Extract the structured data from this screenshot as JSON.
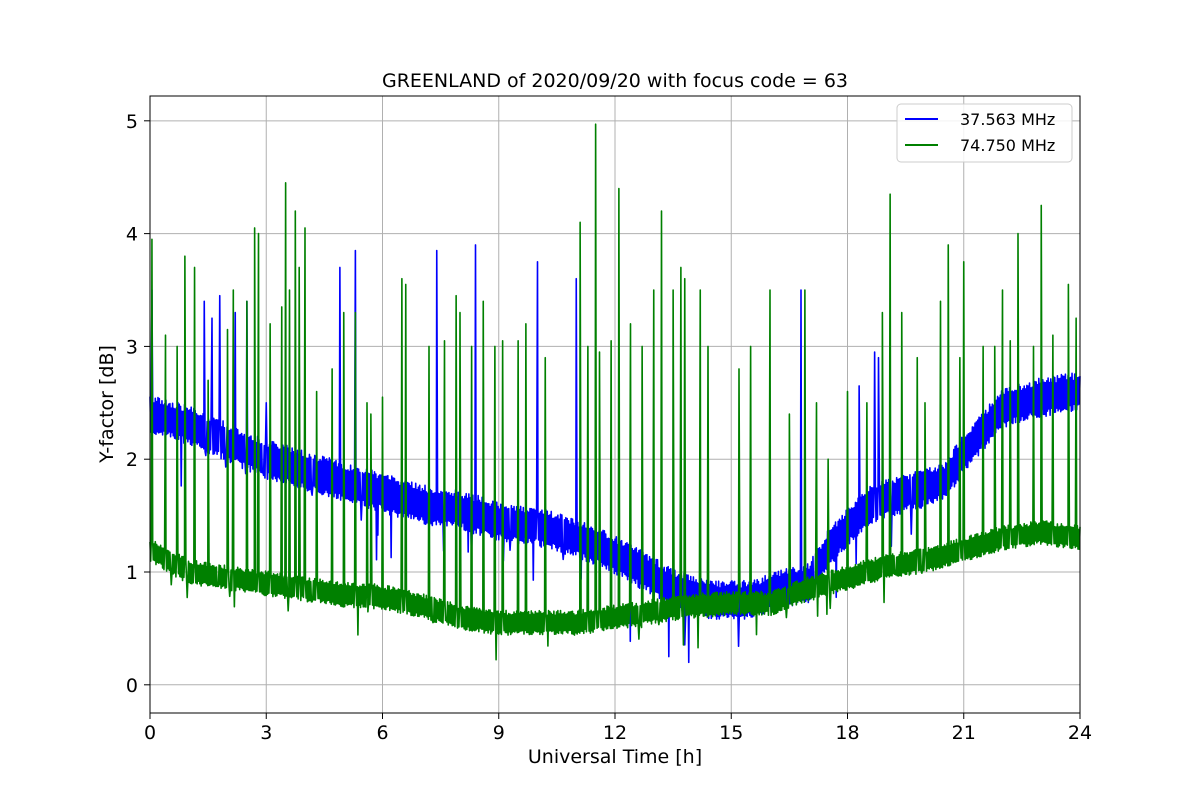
{
  "chart_data": {
    "type": "line",
    "title": "GREENLAND of 2020/09/20 with focus code = 63",
    "xlabel": "Universal Time [h]",
    "ylabel": "Y-factor [dB]",
    "xlim": [
      0,
      24
    ],
    "ylim": [
      -0.25,
      5.22
    ],
    "xticks": [
      0,
      3,
      6,
      9,
      12,
      15,
      18,
      21,
      24
    ],
    "yticks": [
      0,
      1,
      2,
      3,
      4,
      5
    ],
    "grid": true,
    "legend_position": "top-right",
    "series": [
      {
        "name": "37.563 MHz",
        "color": "#0000ff",
        "baseline": [
          [
            0,
            2.4
          ],
          [
            1,
            2.3
          ],
          [
            2,
            2.15
          ],
          [
            3,
            2.0
          ],
          [
            4,
            1.9
          ],
          [
            5,
            1.8
          ],
          [
            6,
            1.7
          ],
          [
            7,
            1.6
          ],
          [
            8,
            1.55
          ],
          [
            9,
            1.45
          ],
          [
            10,
            1.4
          ],
          [
            11,
            1.3
          ],
          [
            12,
            1.15
          ],
          [
            12.8,
            1.0
          ],
          [
            13.5,
            0.85
          ],
          [
            14.5,
            0.75
          ],
          [
            15.5,
            0.75
          ],
          [
            16.3,
            0.85
          ],
          [
            17.0,
            0.9
          ],
          [
            17.5,
            1.2
          ],
          [
            18,
            1.4
          ],
          [
            18.6,
            1.6
          ],
          [
            19.5,
            1.7
          ],
          [
            20.5,
            1.8
          ],
          [
            21,
            2.05
          ],
          [
            22,
            2.45
          ],
          [
            23,
            2.55
          ],
          [
            24,
            2.6
          ]
        ],
        "band_width": 0.35,
        "spikes": [
          [
            0.05,
            3.5
          ],
          [
            1.4,
            3.4
          ],
          [
            1.6,
            3.25
          ],
          [
            1.8,
            3.45
          ],
          [
            2.2,
            3.3
          ],
          [
            2.5,
            3.4
          ],
          [
            3.0,
            2.5
          ],
          [
            4.9,
            3.7
          ],
          [
            5.3,
            3.85
          ],
          [
            7.4,
            3.85
          ],
          [
            8.4,
            3.9
          ],
          [
            10.0,
            3.75
          ],
          [
            11.0,
            3.6
          ],
          [
            16.8,
            3.5
          ],
          [
            18.3,
            2.65
          ],
          [
            18.7,
            2.95
          ],
          [
            18.8,
            2.9
          ]
        ]
      },
      {
        "name": "74.750 MHz",
        "color": "#008000",
        "baseline": [
          [
            0,
            1.2
          ],
          [
            1,
            1.0
          ],
          [
            2,
            0.95
          ],
          [
            3,
            0.9
          ],
          [
            4,
            0.85
          ],
          [
            5,
            0.8
          ],
          [
            6,
            0.78
          ],
          [
            7,
            0.7
          ],
          [
            8,
            0.6
          ],
          [
            9,
            0.55
          ],
          [
            10,
            0.55
          ],
          [
            11,
            0.55
          ],
          [
            12,
            0.6
          ],
          [
            13,
            0.65
          ],
          [
            14,
            0.7
          ],
          [
            15,
            0.72
          ],
          [
            16,
            0.72
          ],
          [
            17,
            0.85
          ],
          [
            18,
            0.95
          ],
          [
            19,
            1.05
          ],
          [
            20,
            1.1
          ],
          [
            21,
            1.2
          ],
          [
            22,
            1.3
          ],
          [
            23,
            1.35
          ],
          [
            24,
            1.3
          ]
        ],
        "band_width": 0.22,
        "spikes": [
          [
            0.05,
            3.95
          ],
          [
            0.4,
            3.1
          ],
          [
            0.7,
            3.0
          ],
          [
            0.9,
            3.8
          ],
          [
            1.15,
            3.7
          ],
          [
            1.5,
            2.7
          ],
          [
            2.0,
            3.15
          ],
          [
            2.15,
            3.5
          ],
          [
            2.5,
            3.4
          ],
          [
            2.7,
            4.05
          ],
          [
            2.8,
            4.0
          ],
          [
            3.1,
            3.2
          ],
          [
            3.4,
            3.35
          ],
          [
            3.5,
            4.45
          ],
          [
            3.6,
            3.5
          ],
          [
            3.75,
            4.2
          ],
          [
            3.85,
            3.7
          ],
          [
            4.0,
            4.05
          ],
          [
            4.3,
            2.6
          ],
          [
            4.7,
            2.8
          ],
          [
            5.0,
            3.3
          ],
          [
            5.3,
            3.3
          ],
          [
            5.6,
            2.5
          ],
          [
            5.7,
            2.4
          ],
          [
            6.0,
            2.55
          ],
          [
            6.5,
            3.6
          ],
          [
            6.6,
            3.55
          ],
          [
            7.2,
            3.0
          ],
          [
            7.6,
            3.05
          ],
          [
            7.9,
            3.45
          ],
          [
            8.0,
            3.3
          ],
          [
            8.3,
            3.0
          ],
          [
            8.6,
            3.4
          ],
          [
            8.9,
            3.0
          ],
          [
            9.1,
            3.05
          ],
          [
            9.5,
            3.05
          ],
          [
            9.7,
            3.2
          ],
          [
            10.2,
            2.9
          ],
          [
            11.1,
            4.1
          ],
          [
            11.3,
            3.0
          ],
          [
            11.5,
            4.97
          ],
          [
            11.6,
            2.95
          ],
          [
            11.9,
            3.05
          ],
          [
            12.1,
            4.4
          ],
          [
            12.4,
            3.2
          ],
          [
            12.7,
            3.0
          ],
          [
            13.0,
            3.5
          ],
          [
            13.2,
            4.2
          ],
          [
            13.5,
            3.5
          ],
          [
            13.7,
            3.7
          ],
          [
            13.8,
            3.6
          ],
          [
            14.2,
            3.5
          ],
          [
            14.4,
            3.0
          ],
          [
            15.2,
            2.8
          ],
          [
            15.5,
            3.0
          ],
          [
            16.0,
            3.5
          ],
          [
            16.5,
            2.4
          ],
          [
            16.9,
            3.5
          ],
          [
            17.2,
            2.5
          ],
          [
            17.5,
            2.0
          ],
          [
            18.0,
            2.6
          ],
          [
            18.5,
            2.5
          ],
          [
            18.9,
            3.3
          ],
          [
            19.1,
            4.35
          ],
          [
            19.4,
            3.3
          ],
          [
            19.8,
            2.9
          ],
          [
            20.0,
            2.5
          ],
          [
            20.4,
            3.4
          ],
          [
            20.6,
            3.9
          ],
          [
            20.9,
            2.9
          ],
          [
            21.0,
            3.75
          ],
          [
            21.5,
            3.0
          ],
          [
            21.8,
            3.0
          ],
          [
            22.0,
            3.5
          ],
          [
            22.2,
            3.05
          ],
          [
            22.4,
            4.0
          ],
          [
            22.8,
            3.0
          ],
          [
            23.0,
            4.25
          ],
          [
            23.3,
            3.1
          ],
          [
            23.7,
            3.55
          ],
          [
            23.9,
            3.25
          ]
        ]
      }
    ]
  }
}
